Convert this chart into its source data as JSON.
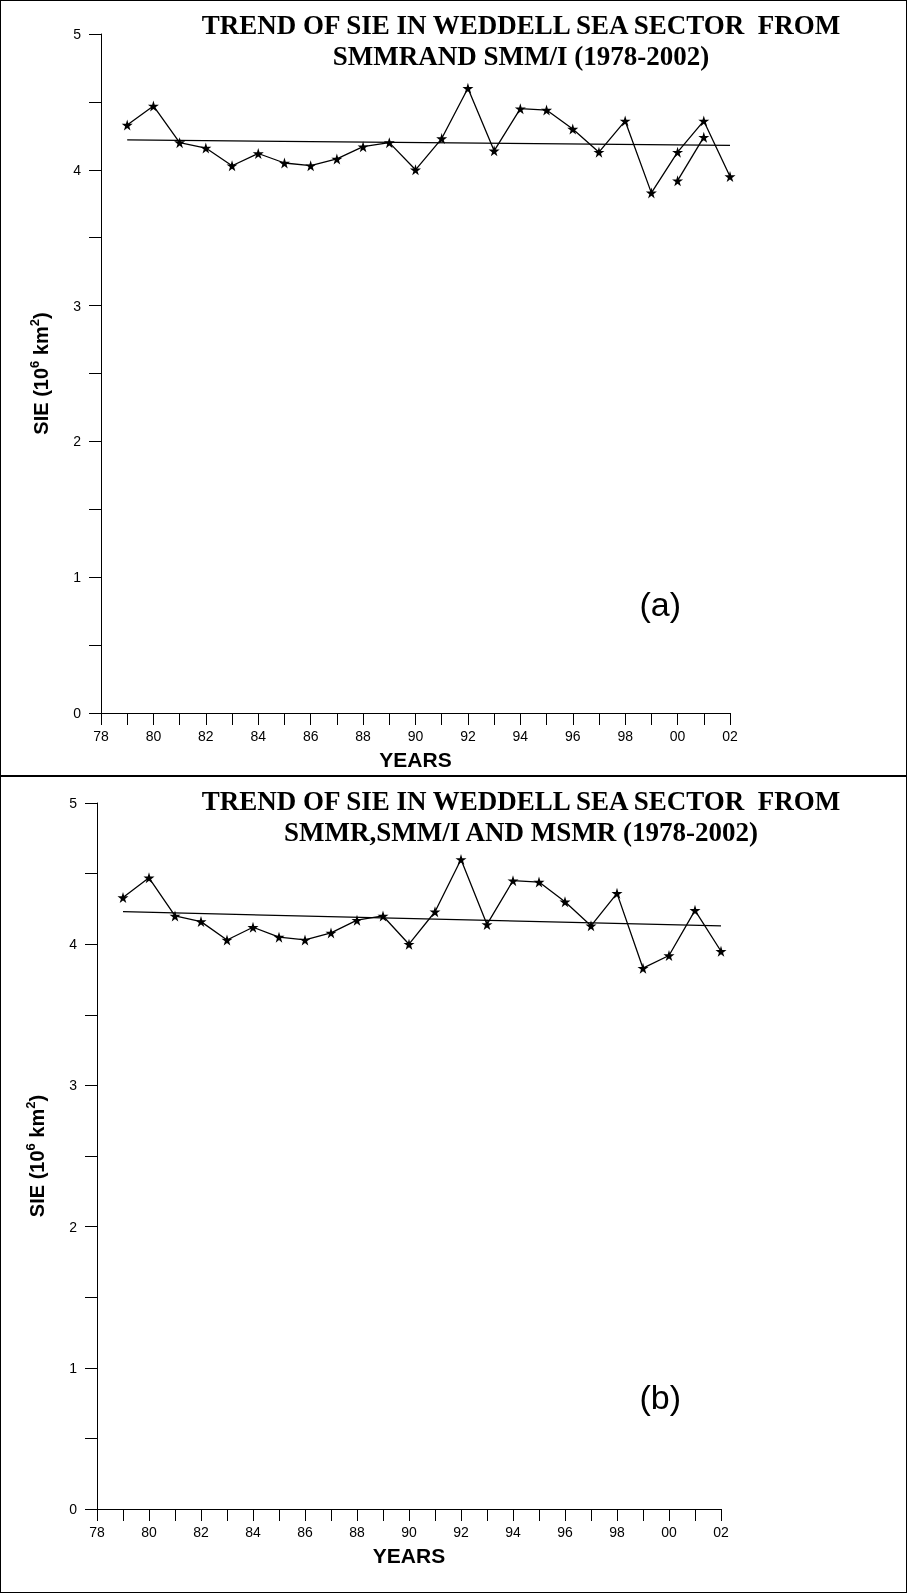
{
  "chart_data": [
    {
      "type": "line",
      "title": "TREND OF SIE IN WEDDELL SEA SECTOR  FROM\nSMMRAND SMM/I (1978-2002)",
      "xlabel": "YEARS",
      "ylabel": "SIE (10$^{6}$ km$^{2}$)",
      "annotations": [
        "(a)"
      ],
      "marker": "star",
      "xlim": [
        1978,
        2002
      ],
      "ylim": [
        0,
        5
      ],
      "xticks": [
        {
          "value": 1978,
          "label": "78"
        },
        {
          "value": 1979,
          "label": null
        },
        {
          "value": 1980,
          "label": "80"
        },
        {
          "value": 1981,
          "label": null
        },
        {
          "value": 1982,
          "label": "82"
        },
        {
          "value": 1983,
          "label": null
        },
        {
          "value": 1984,
          "label": "84"
        },
        {
          "value": 1985,
          "label": null
        },
        {
          "value": 1986,
          "label": "86"
        },
        {
          "value": 1987,
          "label": null
        },
        {
          "value": 1988,
          "label": "88"
        },
        {
          "value": 1989,
          "label": null
        },
        {
          "value": 1990,
          "label": "90"
        },
        {
          "value": 1991,
          "label": null
        },
        {
          "value": 1992,
          "label": "92"
        },
        {
          "value": 1993,
          "label": null
        },
        {
          "value": 1994,
          "label": "94"
        },
        {
          "value": 1995,
          "label": null
        },
        {
          "value": 1996,
          "label": "96"
        },
        {
          "value": 1997,
          "label": null
        },
        {
          "value": 1998,
          "label": "98"
        },
        {
          "value": 1999,
          "label": null
        },
        {
          "value": 2000,
          "label": "00"
        },
        {
          "value": 2001,
          "label": null
        },
        {
          "value": 2002,
          "label": "02"
        }
      ],
      "yticks": [
        0,
        {
          "value": 0.5,
          "label": null
        },
        1,
        {
          "value": 1.5,
          "label": null
        },
        2,
        {
          "value": 2.5,
          "label": null
        },
        3,
        {
          "value": 3.5,
          "label": null
        },
        4,
        {
          "value": 4.5,
          "label": null
        },
        5
      ],
      "x": [
        1979,
        1980,
        1981,
        1982,
        1983,
        1984,
        1985,
        1986,
        1987,
        1988,
        1989,
        1990,
        1991,
        1992,
        1993,
        1994,
        1995,
        1996,
        1997,
        1998,
        1999,
        2000,
        2001,
        2002
      ],
      "series": [
        {
          "color": "#000000",
          "values": [
            4.33,
            4.47,
            4.2,
            4.16,
            4.03,
            4.12,
            4.05,
            4.03,
            4.08,
            4.17,
            4.2,
            4.0,
            4.23,
            4.6,
            4.14,
            4.45,
            4.44,
            4.3,
            4.13,
            4.36,
            3.83,
            4.13,
            4.36,
            3.95
          ]
        },
        {
          "color": "#000000",
          "x": [
            2000,
            2001
          ],
          "values": [
            3.92,
            4.24
          ]
        },
        {
          "color": "#000000",
          "marker": "none",
          "x": [
            1979,
            2002
          ],
          "values": [
            4.22,
            4.18
          ]
        }
      ]
    },
    {
      "type": "line",
      "title": "TREND OF SIE IN WEDDELL SEA SECTOR  FROM\nSMMR,SMM/I AND MSMR (1978-2002)",
      "xlabel": "YEARS",
      "ylabel": "SIE (10$^{6}$ km$^{2}$)",
      "annotations": [
        "(b)"
      ],
      "marker": "star",
      "xlim": [
        1978,
        2002
      ],
      "ylim": [
        0,
        5
      ],
      "xticks": [
        {
          "value": 1978,
          "label": "78"
        },
        {
          "value": 1979,
          "label": null
        },
        {
          "value": 1980,
          "label": "80"
        },
        {
          "value": 1981,
          "label": null
        },
        {
          "value": 1982,
          "label": "82"
        },
        {
          "value": 1983,
          "label": null
        },
        {
          "value": 1984,
          "label": "84"
        },
        {
          "value": 1985,
          "label": null
        },
        {
          "value": 1986,
          "label": "86"
        },
        {
          "value": 1987,
          "label": null
        },
        {
          "value": 1988,
          "label": "88"
        },
        {
          "value": 1989,
          "label": null
        },
        {
          "value": 1990,
          "label": "90"
        },
        {
          "value": 1991,
          "label": null
        },
        {
          "value": 1992,
          "label": "92"
        },
        {
          "value": 1993,
          "label": null
        },
        {
          "value": 1994,
          "label": "94"
        },
        {
          "value": 1995,
          "label": null
        },
        {
          "value": 1996,
          "label": "96"
        },
        {
          "value": 1997,
          "label": null
        },
        {
          "value": 1998,
          "label": "98"
        },
        {
          "value": 1999,
          "label": null
        },
        {
          "value": 2000,
          "label": "00"
        },
        {
          "value": 2001,
          "label": null
        },
        {
          "value": 2002,
          "label": "02"
        }
      ],
      "yticks": [
        0,
        {
          "value": 0.5,
          "label": null
        },
        1,
        {
          "value": 1.5,
          "label": null
        },
        2,
        {
          "value": 2.5,
          "label": null
        },
        3,
        {
          "value": 3.5,
          "label": null
        },
        4,
        {
          "value": 4.5,
          "label": null
        },
        5
      ],
      "x": [
        1979,
        1980,
        1981,
        1982,
        1983,
        1984,
        1985,
        1986,
        1987,
        1988,
        1989,
        1990,
        1991,
        1992,
        1993,
        1994,
        1995,
        1996,
        1997,
        1998,
        1999,
        2000,
        2001,
        2002
      ],
      "series": [
        {
          "color": "#000000",
          "values": [
            4.33,
            4.47,
            4.2,
            4.16,
            4.03,
            4.12,
            4.05,
            4.03,
            4.08,
            4.17,
            4.2,
            4.0,
            4.23,
            4.6,
            4.14,
            4.45,
            4.44,
            4.3,
            4.13,
            4.36,
            3.83,
            3.92,
            4.24,
            3.95
          ]
        },
        {
          "color": "#000000",
          "marker": "none",
          "x": [
            1979,
            2002
          ],
          "values": [
            4.23,
            4.13
          ]
        }
      ]
    }
  ]
}
